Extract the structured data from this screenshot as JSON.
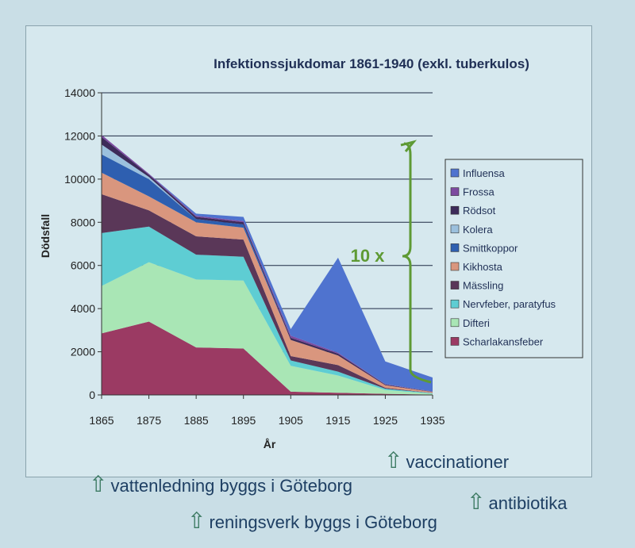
{
  "chart_data": {
    "type": "area",
    "stacked": true,
    "title": "Infektionssjukdomar 1861-1940 (exkl. tuberkulos)",
    "xlabel": "År",
    "ylabel": "Dödsfall",
    "x": [
      1865,
      1875,
      1885,
      1895,
      1905,
      1915,
      1925,
      1935
    ],
    "ylim": [
      0,
      14000
    ],
    "yticks": [
      0,
      2000,
      4000,
      6000,
      8000,
      10000,
      12000,
      14000
    ],
    "grid": true,
    "legend_position": "right",
    "series": [
      {
        "name": "Scharlakansfeber",
        "color": "#9b3a63",
        "values": [
          2850,
          3400,
          2200,
          2150,
          150,
          100,
          50,
          20
        ]
      },
      {
        "name": "Difteri",
        "color": "#a9e6b5",
        "values": [
          2200,
          2750,
          3150,
          3150,
          1200,
          800,
          180,
          40
        ]
      },
      {
        "name": "Nervfeber, paratyfus",
        "color": "#5ecdd3",
        "values": [
          2450,
          1650,
          1150,
          1100,
          250,
          180,
          60,
          20
        ]
      },
      {
        "name": "Mässling",
        "color": "#5a3758",
        "values": [
          1800,
          750,
          850,
          800,
          200,
          300,
          40,
          10
        ]
      },
      {
        "name": "Kikhosta",
        "color": "#d9967e",
        "values": [
          1000,
          650,
          650,
          550,
          750,
          450,
          120,
          50
        ]
      },
      {
        "name": "Smittkoppor",
        "color": "#2e5fb0",
        "values": [
          850,
          800,
          150,
          150,
          0,
          0,
          0,
          0
        ]
      },
      {
        "name": "Kolera",
        "color": "#9bc0dd",
        "values": [
          450,
          100,
          0,
          0,
          0,
          0,
          0,
          0
        ]
      },
      {
        "name": "Rödsot",
        "color": "#3d2b5a",
        "values": [
          350,
          100,
          100,
          100,
          100,
          80,
          30,
          10
        ]
      },
      {
        "name": "Frossa",
        "color": "#7d4aa0",
        "values": [
          100,
          50,
          50,
          50,
          100,
          50,
          20,
          10
        ]
      },
      {
        "name": "Influensa",
        "color": "#4f73cf",
        "values": [
          0,
          0,
          100,
          200,
          300,
          4400,
          1050,
          650
        ]
      }
    ],
    "annotations": [
      {
        "text": "10 x",
        "color": "#5e9a34"
      }
    ]
  },
  "notes": [
    {
      "text": "vattenledning byggs i Göteborg"
    },
    {
      "text": "reningsverk byggs i Göteborg"
    },
    {
      "text": "vaccinationer"
    },
    {
      "text": "antibiotika"
    }
  ]
}
